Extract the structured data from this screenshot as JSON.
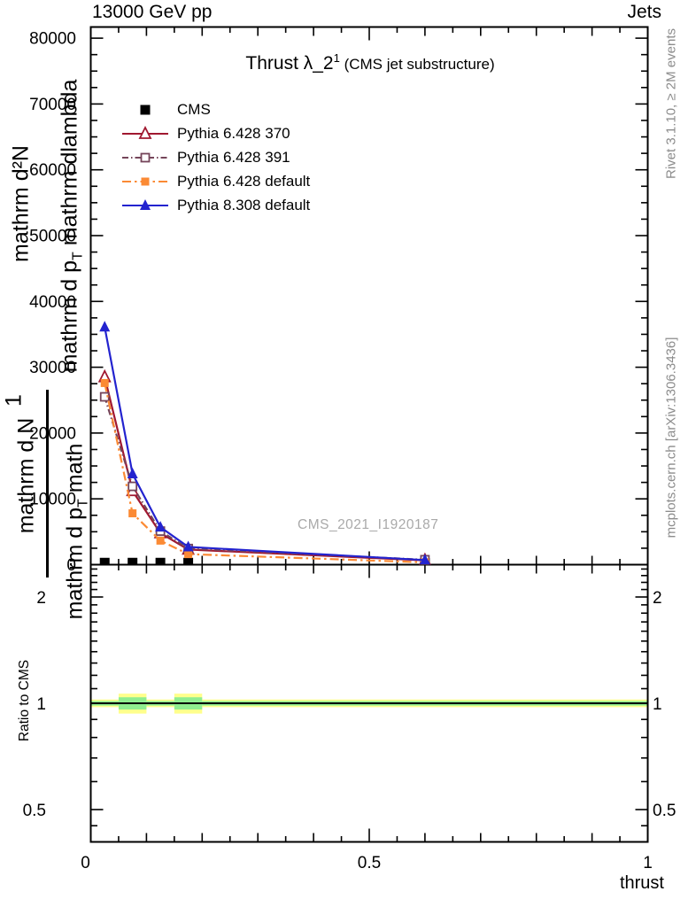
{
  "header": {
    "left": "13000 GeV pp",
    "right": "Jets"
  },
  "title": {
    "main": "Thrust λ_2",
    "sup": "1",
    "paren": " (CMS jet substructure)"
  },
  "watermark": "CMS_2021_I1920187",
  "side_notes": {
    "rivet": "Rivet 3.1.10, ≥ 2M events",
    "mcplots": "mcplots.cern.ch [arXiv:1306.3436]"
  },
  "x_axis": {
    "label": "thrust"
  },
  "ratio": {
    "ylabel": "Ratio to CMS"
  },
  "ylabel_fragments": {
    "f1": "mathrm d²N",
    "f2a": "mathrm d p",
    "f2sub": "T",
    "f2b": " mathrm dlambda",
    "f3": "1",
    "f4": "mathrm d N",
    "f5a": "mathrm d p",
    "f5sub": "T",
    "f5b": " math"
  },
  "chart_data": {
    "type": "line",
    "title": "Thrust λ_2^1 (CMS jet substructure)",
    "xlabel": "thrust",
    "ylabel": "1/N d²N / (d p_T d lambda)  [rendered garbled as literal 'mathrm' LaTeX]",
    "xlim": [
      0,
      1
    ],
    "ylim": [
      0,
      86000
    ],
    "grid": false,
    "legend_position": "upper-left-inside",
    "x_ticks": [
      {
        "v": 0,
        "label": "0"
      },
      {
        "v": 0.5,
        "label": "0.5"
      },
      {
        "v": 1,
        "label": "1"
      }
    ],
    "x_minor_step": 0.05,
    "y_ticks": [
      {
        "v": 0,
        "label": "0"
      },
      {
        "v": 10000,
        "label": "10000"
      },
      {
        "v": 20000,
        "label": "20000"
      },
      {
        "v": 30000,
        "label": "30000"
      },
      {
        "v": 40000,
        "label": "40000"
      },
      {
        "v": 50000,
        "label": "50000"
      },
      {
        "v": 60000,
        "label": "60000"
      },
      {
        "v": 70000,
        "label": "70000"
      },
      {
        "v": 80000,
        "label": "80000"
      }
    ],
    "y_minor_step": 2500,
    "x": [
      0.025,
      0.075,
      0.125,
      0.175,
      0.6
    ],
    "series": [
      {
        "name": "CMS",
        "color": "#000000",
        "marker": "square-filled",
        "msize": 11,
        "line": "none",
        "values": [
          300,
          300,
          300,
          300,
          250
        ]
      },
      {
        "name": "Pythia 6.428 370",
        "color": "#a01830",
        "marker": "triangle-open",
        "msize": 12,
        "line": "solid",
        "values": [
          28500,
          11200,
          4800,
          2300,
          650
        ]
      },
      {
        "name": "Pythia 6.428 391",
        "color": "#75455a",
        "marker": "square-open",
        "msize": 9,
        "line": "dashdot-short",
        "values": [
          25500,
          11900,
          5100,
          2450,
          750
        ]
      },
      {
        "name": "Pythia 6.428 default",
        "color": "#fb8a34",
        "marker": "square-filled",
        "msize": 9,
        "line": "dashdot-long",
        "values": [
          27600,
          7800,
          3650,
          1600,
          350
        ]
      },
      {
        "name": "Pythia 8.308 default",
        "color": "#2323cf",
        "marker": "triangle-filled",
        "msize": 12,
        "line": "solid",
        "values": [
          36100,
          13800,
          5700,
          2700,
          700
        ]
      }
    ],
    "ratio_panel": {
      "ylabel": "Ratio to CMS",
      "yscale": "log",
      "ylim": [
        0.405,
        2.47
      ],
      "y_ticks": [
        {
          "v": 2,
          "label": "2"
        },
        {
          "v": 1,
          "label": "1"
        },
        {
          "v": 0.5,
          "label": "0.5"
        }
      ],
      "reference_line": 1.0,
      "band_colors": {
        "outer": "#ffff8c",
        "inner": "#90ee90"
      },
      "band_segments": [
        {
          "x0": 0.0,
          "x1": 0.05,
          "outer": 0.025,
          "inner": 0.015
        },
        {
          "x0": 0.05,
          "x1": 0.1,
          "outer": 0.065,
          "inner": 0.04
        },
        {
          "x0": 0.1,
          "x1": 0.15,
          "outer": 0.025,
          "inner": 0.015
        },
        {
          "x0": 0.15,
          "x1": 0.2,
          "outer": 0.065,
          "inner": 0.04
        },
        {
          "x0": 0.2,
          "x1": 1.0,
          "outer": 0.025,
          "inner": 0.015
        }
      ]
    }
  }
}
